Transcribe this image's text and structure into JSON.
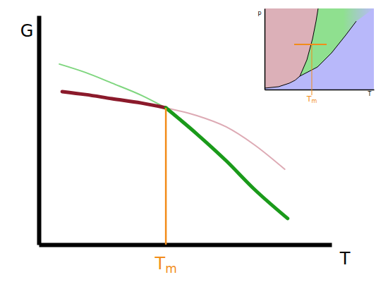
{
  "chart_data": [
    {
      "type": "line",
      "x_label": "T",
      "y_label": "G",
      "xlim": [
        0,
        100
      ],
      "ylim": [
        0,
        100
      ],
      "tick_labels": false,
      "series": [
        {
          "color": "#ddaab4",
          "line_style": "thin",
          "x": [
            43.4,
            54,
            64,
            73.5,
            84
          ],
          "values": [
            59.7,
            56.3,
            51.4,
            43.7,
            32.9
          ]
        },
        {
          "color": "#7fd67f",
          "line_style": "thin",
          "x": [
            7,
            16,
            25,
            35,
            43.4
          ],
          "values": [
            78.8,
            75.1,
            70.5,
            65.2,
            59.7
          ]
        },
        {
          "color": "#8b1a2b",
          "line_style": "thick",
          "x": [
            8,
            16,
            25,
            35,
            43.4
          ],
          "values": [
            66.8,
            65.5,
            63.7,
            61.8,
            59.7
          ]
        },
        {
          "color": "#1a9a1a",
          "line_style": "thick",
          "x": [
            43.4,
            54,
            64,
            73.5,
            85
          ],
          "values": [
            59.7,
            48.3,
            36.6,
            24.3,
            11.4
          ]
        }
      ],
      "annotations": [
        {
          "text": "Tm",
          "x": 43.4,
          "y": 59.7
        }
      ]
    },
    {
      "type": "phase_diagram",
      "x_label": "T",
      "y_label": "p",
      "xlim": [
        0,
        10
      ],
      "ylim": [
        0,
        10
      ],
      "tick_labels": false,
      "colors": [
        "#dcb0b8",
        "#8fe08f",
        "#b8b8fa"
      ],
      "series": [
        {
          "color": "#000000",
          "line_style": "thin",
          "x": [
            0,
            1.29,
            2.26,
            2.8,
            3.23
          ],
          "values": [
            0.17,
            0.35,
            0.78,
            1.15,
            1.65
          ]
        },
        {
          "color": "#000000",
          "line_style": "thin",
          "x": [
            3.23,
            3.87,
            4.39,
            4.71,
            4.9
          ],
          "values": [
            1.65,
            3.65,
            6.26,
            8.43,
            10
          ]
        },
        {
          "color": "#000000",
          "line_style": "thin",
          "x": [
            3.23,
            4.84,
            6.13,
            7.42,
            8.39
          ],
          "values": [
            1.65,
            2.78,
            4.52,
            6.7,
            8.43
          ]
        }
      ],
      "annotations": [
        {
          "text": "Tm",
          "x": 4.32,
          "y": 5.57,
          "x_range": [
            2.71,
            5.68
          ]
        }
      ]
    }
  ]
}
